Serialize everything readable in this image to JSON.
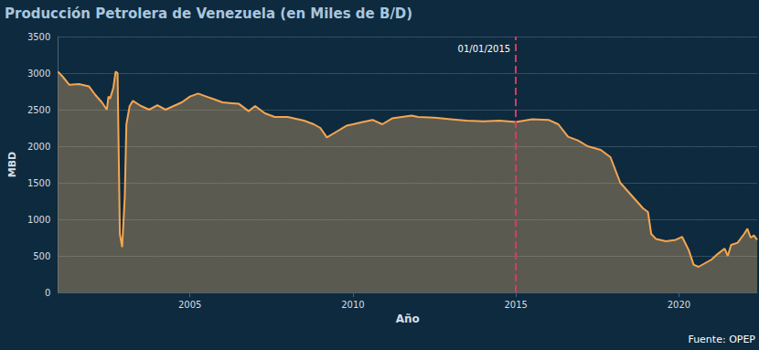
{
  "chart_data": {
    "type": "area",
    "title": "Producción Petrolera de Venezuela (en Miles de B/D)",
    "x_label": "Año",
    "y_label": "MBD",
    "source": "Fuente: OPEP",
    "color": "#f5a650",
    "grid": true,
    "x": [
      2000.95,
      2001.1,
      2001.3,
      2001.6,
      2001.9,
      2002.1,
      2002.3,
      2002.45,
      2002.5,
      2002.55,
      2002.65,
      2002.72,
      2002.78,
      2002.85,
      2002.92,
      2003.0,
      2003.05,
      2003.15,
      2003.25,
      2003.5,
      2003.75,
      2004.0,
      2004.25,
      2004.5,
      2004.75,
      2005.0,
      2005.25,
      2005.5,
      2005.75,
      2006.0,
      2006.5,
      2006.8,
      2007.0,
      2007.3,
      2007.6,
      2008.0,
      2008.5,
      2008.8,
      2009.0,
      2009.2,
      2009.5,
      2009.8,
      2010.0,
      2010.3,
      2010.6,
      2010.9,
      2011.2,
      2011.5,
      2011.8,
      2012.0,
      2012.5,
      2013.0,
      2013.5,
      2014.0,
      2014.5,
      2015.0,
      2015.5,
      2016.0,
      2016.3,
      2016.6,
      2016.9,
      2017.2,
      2017.6,
      2017.9,
      2018.2,
      2018.6,
      2018.9,
      2019.05,
      2019.15,
      2019.3,
      2019.6,
      2019.9,
      2020.1,
      2020.3,
      2020.45,
      2020.6,
      2020.8,
      2021.0,
      2021.2,
      2021.4,
      2021.5,
      2021.6,
      2021.8,
      2022.0,
      2022.1,
      2022.2,
      2022.3,
      2022.4
    ],
    "values": [
      3020,
      2950,
      2840,
      2850,
      2820,
      2700,
      2600,
      2500,
      2680,
      2650,
      2800,
      3020,
      3000,
      800,
      620,
      1300,
      2300,
      2550,
      2620,
      2550,
      2500,
      2560,
      2500,
      2550,
      2600,
      2680,
      2720,
      2680,
      2640,
      2600,
      2580,
      2480,
      2550,
      2450,
      2400,
      2400,
      2350,
      2300,
      2250,
      2120,
      2200,
      2280,
      2300,
      2330,
      2360,
      2300,
      2380,
      2400,
      2420,
      2400,
      2390,
      2370,
      2350,
      2340,
      2350,
      2330,
      2370,
      2360,
      2300,
      2130,
      2080,
      2000,
      1950,
      1850,
      1500,
      1300,
      1150,
      1100,
      800,
      730,
      700,
      720,
      760,
      580,
      380,
      350,
      400,
      450,
      530,
      600,
      500,
      650,
      680,
      800,
      870,
      750,
      780,
      720
    ],
    "xlim": [
      2000.95,
      2022.4
    ],
    "xticks": [
      2005,
      2010,
      2015,
      2020
    ],
    "ylim": [
      0,
      3500
    ],
    "yticks": [
      0,
      500,
      1000,
      1500,
      2000,
      2500,
      3000,
      3500
    ],
    "annotations": [
      {
        "x": 2015,
        "label": "01/01/2015",
        "color": "#d93a5e",
        "line_style": "dashed"
      }
    ]
  }
}
